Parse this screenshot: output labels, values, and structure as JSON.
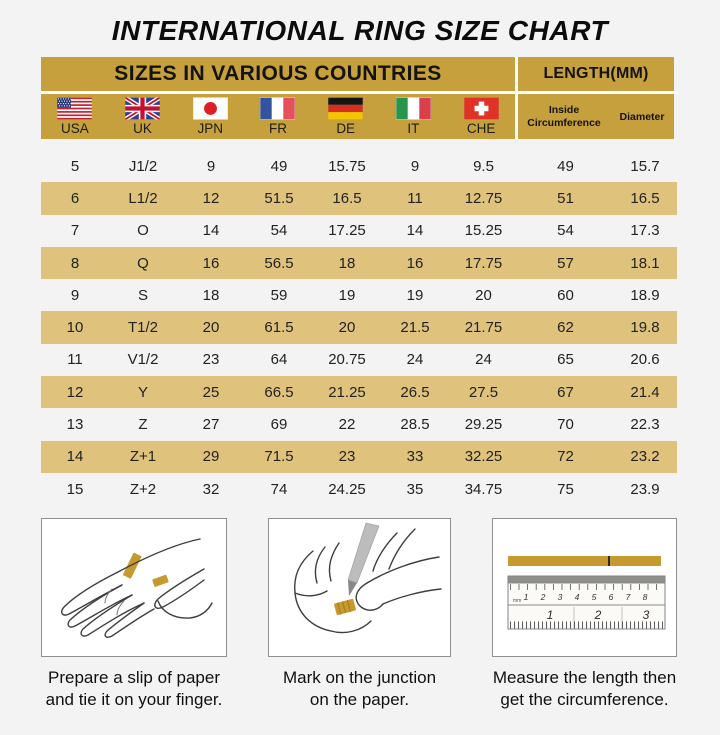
{
  "title": "INTERNATIONAL RING SIZE CHART",
  "colors": {
    "header_gold": "#C6A03C",
    "row_gold": "#DFC37D",
    "paper_strip_gold": "#C79A30",
    "background": "#F3F3F3"
  },
  "table": {
    "header_left": "SIZES IN VARIOUS COUNTRIES",
    "header_right": "LENGTH(MM)",
    "countries": [
      {
        "label": "USA",
        "icon": "flag-usa-icon"
      },
      {
        "label": "UK",
        "icon": "flag-uk-icon"
      },
      {
        "label": "JPN",
        "icon": "flag-japan-icon"
      },
      {
        "label": "FR",
        "icon": "flag-france-icon"
      },
      {
        "label": "DE",
        "icon": "flag-germany-icon"
      },
      {
        "label": "IT",
        "icon": "flag-italy-icon"
      },
      {
        "label": "CHE",
        "icon": "flag-switzerland-icon"
      }
    ],
    "length_columns": {
      "inside_circumference": "Inside Circumference",
      "diameter": "Diameter"
    },
    "rows": [
      [
        "5",
        "J1/2",
        "9",
        "49",
        "15.75",
        "9",
        "9.5",
        "49",
        "15.7"
      ],
      [
        "6",
        "L1/2",
        "12",
        "51.5",
        "16.5",
        "11",
        "12.75",
        "51",
        "16.5"
      ],
      [
        "7",
        "O",
        "14",
        "54",
        "17.25",
        "14",
        "15.25",
        "54",
        "17.3"
      ],
      [
        "8",
        "Q",
        "16",
        "56.5",
        "18",
        "16",
        "17.75",
        "57",
        "18.1"
      ],
      [
        "9",
        "S",
        "18",
        "59",
        "19",
        "19",
        "20",
        "60",
        "18.9"
      ],
      [
        "10",
        "T1/2",
        "20",
        "61.5",
        "20",
        "21.5",
        "21.75",
        "62",
        "19.8"
      ],
      [
        "11",
        "V1/2",
        "23",
        "64",
        "20.75",
        "24",
        "24",
        "65",
        "20.6"
      ],
      [
        "12",
        "Y",
        "25",
        "66.5",
        "21.25",
        "26.5",
        "27.5",
        "67",
        "21.4"
      ],
      [
        "13",
        "Z",
        "27",
        "69",
        "22",
        "28.5",
        "29.25",
        "70",
        "22.3"
      ],
      [
        "14",
        "Z+1",
        "29",
        "71.5",
        "23",
        "33",
        "32.25",
        "72",
        "23.2"
      ],
      [
        "15",
        "Z+2",
        "32",
        "74",
        "24.25",
        "35",
        "34.75",
        "75",
        "23.9"
      ]
    ]
  },
  "instructions": {
    "items": [
      {
        "icon": "hand-with-paper-strip-icon",
        "lines": [
          "Prepare a slip of paper",
          "and tie it on your finger."
        ]
      },
      {
        "icon": "pen-marking-junction-icon",
        "lines": [
          "Mark on the junction",
          "on the paper."
        ]
      },
      {
        "icon": "ruler-measure-icon",
        "lines": [
          "Measure the length then",
          "get the circumference."
        ],
        "ruler": {
          "cm_labels": [
            "1",
            "2",
            "3",
            "4",
            "5",
            "6",
            "7",
            "8"
          ],
          "inch_labels": [
            "1",
            "2",
            "3"
          ]
        }
      }
    ]
  }
}
